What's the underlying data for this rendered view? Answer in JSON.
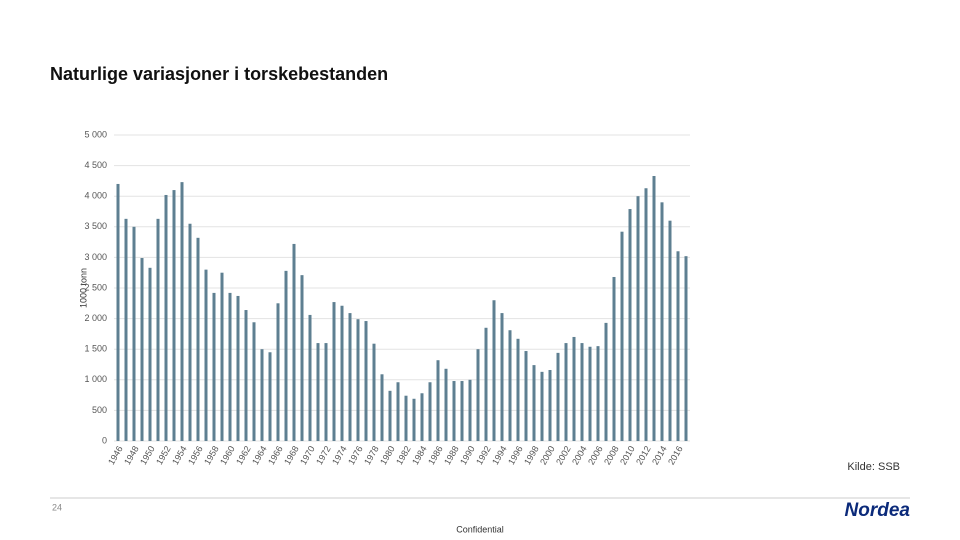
{
  "chart_data": {
    "type": "bar",
    "title": "Naturlige variasjoner i torskebestanden",
    "y_label": "1000 tonn",
    "source": "Kilde: SSB",
    "page_number": "24",
    "footer": "Confidential",
    "logo": "Nordea",
    "color": "#5e7f91",
    "grid": true,
    "categories": [
      "1946",
      null,
      "1948",
      null,
      "1950",
      null,
      "1952",
      null,
      "1954",
      null,
      "1956",
      null,
      "1958",
      null,
      "1960",
      null,
      "1962",
      null,
      "1964",
      null,
      "1966",
      null,
      "1968",
      null,
      "1970",
      null,
      "1972",
      null,
      "1974",
      null,
      "1976",
      null,
      "1978",
      null,
      "1980",
      null,
      "1982",
      null,
      "1984",
      null,
      "1986",
      null,
      "1988",
      null,
      "1990",
      null,
      "1992",
      null,
      "1994",
      null,
      "1996",
      null,
      "1998",
      null,
      "2000",
      null,
      "2002",
      null,
      "2004",
      null,
      "2006",
      null,
      "2008",
      null,
      "2010",
      null,
      "2012",
      null,
      "2014",
      null,
      "2016",
      null
    ],
    "values": [
      4200,
      3630,
      3500,
      2990,
      2830,
      3630,
      4020,
      4100,
      4230,
      3550,
      3320,
      2800,
      2420,
      2750,
      2420,
      2370,
      2140,
      1940,
      1500,
      1450,
      2250,
      2780,
      3220,
      2710,
      2060,
      1600,
      1600,
      2270,
      2210,
      2090,
      1990,
      1960,
      1590,
      1090,
      820,
      960,
      740,
      690,
      780,
      960,
      1320,
      1180,
      980,
      980,
      1000,
      1500,
      1850,
      2300,
      2090,
      1810,
      1670,
      1470,
      1240,
      1130,
      1160,
      1440,
      1600,
      1700,
      1600,
      1540,
      1550,
      1930,
      2680,
      3420,
      3790,
      4000,
      4130,
      4330,
      3900,
      3600,
      3100,
      3020
    ],
    "ylim": [
      0,
      5000
    ],
    "yticks": [
      0,
      500,
      {
        "value": 1000,
        "label": "1 000"
      },
      {
        "value": 1500,
        "label": "1 500"
      },
      {
        "value": 2000,
        "label": "2 000"
      },
      {
        "value": 2500,
        "label": "2 500"
      },
      {
        "value": 3000,
        "label": "3 000"
      },
      {
        "value": 3500,
        "label": "3 500"
      },
      {
        "value": 4000,
        "label": "4 000"
      },
      {
        "value": 4500,
        "label": "4 500"
      },
      {
        "value": 5000,
        "label": "5 000"
      }
    ]
  }
}
